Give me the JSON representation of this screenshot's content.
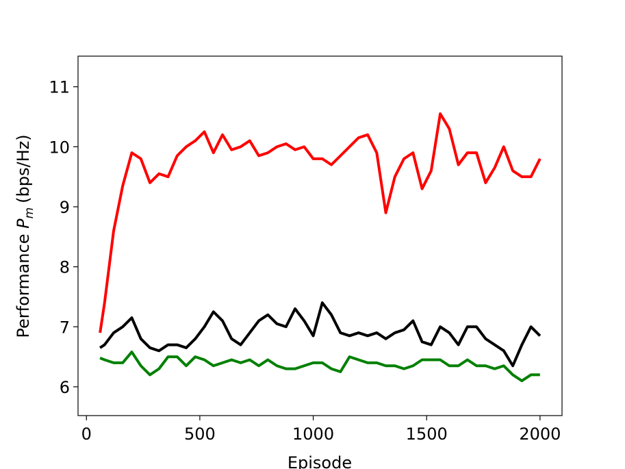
{
  "chart_data": {
    "type": "line",
    "xlabel": "Episode",
    "ylabel_parts": [
      "Performance",
      "P",
      "m",
      "(bps/Hz)"
    ],
    "x": [
      60,
      80,
      120,
      160,
      200,
      240,
      280,
      320,
      360,
      400,
      440,
      480,
      520,
      560,
      600,
      640,
      680,
      720,
      760,
      800,
      840,
      880,
      920,
      960,
      1000,
      1040,
      1080,
      1120,
      1160,
      1200,
      1240,
      1280,
      1320,
      1360,
      1400,
      1440,
      1480,
      1520,
      1560,
      1600,
      1640,
      1680,
      1720,
      1760,
      1800,
      1840,
      1880,
      1920,
      1960,
      2000
    ],
    "series": [
      {
        "color": "#ff0000",
        "values": [
          6.9,
          7.4,
          8.6,
          9.35,
          9.9,
          9.8,
          9.4,
          9.55,
          9.5,
          9.85,
          10.0,
          10.1,
          10.25,
          9.9,
          10.2,
          9.95,
          10.0,
          10.1,
          9.85,
          9.9,
          10.0,
          10.05,
          9.95,
          10.0,
          9.8,
          9.8,
          9.7,
          9.85,
          10.0,
          10.15,
          10.2,
          9.9,
          8.9,
          9.5,
          9.8,
          9.9,
          9.3,
          9.6,
          10.55,
          10.3,
          9.7,
          9.9,
          9.9,
          9.4,
          9.65,
          10.0,
          9.6,
          9.5,
          9.5,
          9.8
        ]
      },
      {
        "color": "#000000",
        "values": [
          6.65,
          6.7,
          6.9,
          7.0,
          7.15,
          6.8,
          6.65,
          6.6,
          6.7,
          6.7,
          6.65,
          6.8,
          7.0,
          7.25,
          7.1,
          6.8,
          6.7,
          6.9,
          7.1,
          7.2,
          7.05,
          7.0,
          7.3,
          7.1,
          6.85,
          7.4,
          7.2,
          6.9,
          6.85,
          6.9,
          6.85,
          6.9,
          6.8,
          6.9,
          6.95,
          7.1,
          6.75,
          6.7,
          7.0,
          6.9,
          6.7,
          7.0,
          7.0,
          6.8,
          6.7,
          6.6,
          6.35,
          6.7,
          7.0,
          6.85
        ]
      },
      {
        "color": "#008000",
        "values": [
          6.48,
          6.45,
          6.4,
          6.4,
          6.58,
          6.35,
          6.2,
          6.3,
          6.5,
          6.5,
          6.35,
          6.5,
          6.45,
          6.35,
          6.4,
          6.45,
          6.4,
          6.45,
          6.35,
          6.45,
          6.35,
          6.3,
          6.3,
          6.35,
          6.4,
          6.4,
          6.3,
          6.25,
          6.5,
          6.45,
          6.4,
          6.4,
          6.35,
          6.35,
          6.3,
          6.35,
          6.45,
          6.45,
          6.45,
          6.35,
          6.35,
          6.45,
          6.35,
          6.35,
          6.3,
          6.35,
          6.2,
          6.1,
          6.2,
          6.2
        ]
      }
    ],
    "xlim": [
      -37,
      2097
    ],
    "ylim": [
      5.52,
      11.51
    ],
    "xticks": [
      0,
      500,
      1000,
      1500,
      2000
    ],
    "yticks": [
      6,
      7,
      8,
      9,
      10,
      11
    ],
    "grid": false
  }
}
